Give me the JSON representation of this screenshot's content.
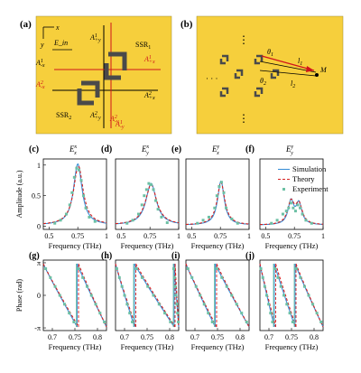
{
  "panels_top": {
    "a": {
      "label": "(a)",
      "x_axis": "x",
      "y_axis": "y",
      "e_in": "E_in",
      "ssr1": "SSR",
      "ssr1_sub": "1",
      "ssr2": "SSR",
      "ssr2_sub": "2",
      "ports": [
        {
          "base": "A",
          "sup": "1",
          "sub": "+y",
          "color": "#000000"
        },
        {
          "base": "A",
          "sup": "1",
          "sub": "+x",
          "color": "#d0141c"
        },
        {
          "base": "A",
          "sup": "1",
          "sub": "-x",
          "color": "#000000"
        },
        {
          "base": "A",
          "sup": "1",
          "sub": "-y",
          "color": "#d0141c"
        },
        {
          "base": "A",
          "sup": "2",
          "sub": "+y",
          "color": "#000000"
        },
        {
          "base": "A",
          "sup": "2",
          "sub": "-x",
          "color": "#d0141c"
        },
        {
          "base": "A",
          "sup": "2",
          "sub": "+x",
          "color": "#000000"
        },
        {
          "base": "A",
          "sup": "2",
          "sub": "-y",
          "color": "#d0141c"
        }
      ]
    },
    "b": {
      "label": "(b)",
      "theta1": "θ",
      "theta1_sub": "1",
      "theta2": "θ",
      "theta2_sub": "2",
      "l1": "l",
      "l1_sub": "1",
      "l2": "l",
      "l2_sub": "2",
      "point": "M",
      "ellipsis": "⋮",
      "ellipsis_h": "· · ·"
    }
  },
  "amp_panels": [
    {
      "label": "(c)",
      "title_base": "E",
      "title_sup": "x",
      "title_sub": "x"
    },
    {
      "label": "(d)",
      "title_base": "E",
      "title_sup": "x",
      "title_sub": "y"
    },
    {
      "label": "(e)",
      "title_base": "E",
      "title_sup": "y",
      "title_sub": "x"
    },
    {
      "label": "(f)",
      "title_base": "E",
      "title_sup": "y",
      "title_sub": "y"
    }
  ],
  "phase_panels": [
    {
      "label": "(g)"
    },
    {
      "label": "(h)"
    },
    {
      "label": "(i)"
    },
    {
      "label": "(j)"
    }
  ],
  "legend": {
    "items": [
      "Simulation",
      "Theory",
      "Experiment"
    ]
  },
  "colors": {
    "gold": "#f6cf3c",
    "simulation": "#3b8fd6",
    "theory": "#d62020",
    "experiment": "#6cc0a4",
    "red_arrow": "#d0141c"
  },
  "chart_data": [
    {
      "type": "line",
      "panel": "(c)",
      "title": "E^x_x",
      "xlabel": "Frequency (THz)",
      "ylabel": "Amplitude (a.u.)",
      "xlim": [
        0.45,
        1.0
      ],
      "ylim": [
        0,
        1
      ],
      "xticks": [
        "0.5",
        "0.75",
        "1"
      ],
      "yticks": [
        "0",
        "0.5",
        "1"
      ],
      "series": [
        {
          "name": "Simulation",
          "peak_x": 0.75,
          "peak_y": 1.0,
          "width": 0.045,
          "base": 0.02
        },
        {
          "name": "Theory",
          "peak_x": 0.755,
          "peak_y": 0.97,
          "width": 0.05,
          "base": 0.02
        },
        {
          "name": "Experiment",
          "x": [
            0.55,
            0.6,
            0.65,
            0.68,
            0.7,
            0.72,
            0.74,
            0.76,
            0.78,
            0.8,
            0.82,
            0.85,
            0.9
          ],
          "y": [
            0.05,
            0.1,
            0.2,
            0.35,
            0.55,
            0.8,
            0.95,
            0.92,
            0.75,
            0.5,
            0.3,
            0.15,
            0.08
          ]
        }
      ]
    },
    {
      "type": "line",
      "panel": "(d)",
      "title": "E^x_y",
      "xlabel": "Frequency (THz)",
      "xlim": [
        0.45,
        1.0
      ],
      "ylim": [
        0,
        1
      ],
      "xticks": [
        "0.5",
        "0.75",
        "1"
      ],
      "series": [
        {
          "name": "Simulation",
          "peak_x": 0.76,
          "peak_y": 0.68,
          "width": 0.055,
          "base": 0.02
        },
        {
          "name": "Theory",
          "peak_x": 0.76,
          "peak_y": 0.66,
          "width": 0.06,
          "base": 0.02
        },
        {
          "name": "Experiment",
          "x": [
            0.55,
            0.6,
            0.65,
            0.68,
            0.7,
            0.72,
            0.74,
            0.76,
            0.78,
            0.8,
            0.82,
            0.85,
            0.9
          ],
          "y": [
            0.05,
            0.1,
            0.2,
            0.35,
            0.5,
            0.6,
            0.7,
            0.68,
            0.6,
            0.42,
            0.28,
            0.15,
            0.06
          ]
        }
      ]
    },
    {
      "type": "line",
      "panel": "(e)",
      "title": "E^y_x",
      "xlabel": "Frequency (THz)",
      "xlim": [
        0.45,
        1.0
      ],
      "ylim": [
        0,
        1
      ],
      "xticks": [
        "0.5",
        "0.75",
        "1"
      ],
      "series": [
        {
          "name": "Simulation",
          "peak_x": 0.755,
          "peak_y": 0.72,
          "width": 0.035,
          "base": 0.02
        },
        {
          "name": "Theory",
          "peak_x": 0.755,
          "peak_y": 0.7,
          "width": 0.04,
          "base": 0.02
        },
        {
          "name": "Experiment",
          "x": [
            0.55,
            0.6,
            0.65,
            0.7,
            0.72,
            0.74,
            0.76,
            0.78,
            0.8,
            0.85,
            0.9
          ],
          "y": [
            0.05,
            0.1,
            0.15,
            0.3,
            0.5,
            0.65,
            0.72,
            0.55,
            0.3,
            0.12,
            0.05
          ]
        }
      ]
    },
    {
      "type": "line",
      "panel": "(f)",
      "title": "E^y_y",
      "xlabel": "Frequency (THz)",
      "xlim": [
        0.45,
        1.0
      ],
      "ylim": [
        0,
        1
      ],
      "xticks": [
        "0.5",
        "0.75",
        "1"
      ],
      "series": [
        {
          "name": "Simulation",
          "double_peak": [
            [
              0.72,
              0.38
            ],
            [
              0.79,
              0.34
            ]
          ],
          "width": 0.03,
          "base": 0.02
        },
        {
          "name": "Theory",
          "double_peak": [
            [
              0.72,
              0.36
            ],
            [
              0.79,
              0.32
            ]
          ],
          "width": 0.035,
          "base": 0.02
        },
        {
          "name": "Experiment",
          "x": [
            0.55,
            0.6,
            0.65,
            0.68,
            0.7,
            0.72,
            0.74,
            0.76,
            0.78,
            0.8,
            0.82,
            0.85,
            0.9
          ],
          "y": [
            0.05,
            0.1,
            0.2,
            0.25,
            0.3,
            0.38,
            0.3,
            0.25,
            0.35,
            0.3,
            0.2,
            0.1,
            0.05
          ]
        }
      ]
    },
    {
      "type": "line",
      "panel": "(g)",
      "xlabel": "Frequency (THz)",
      "ylabel": "Phase (rad)",
      "xlim": [
        0.68,
        0.82
      ],
      "ylim": [
        -3.1416,
        3.1416
      ],
      "xticks": [
        "0.7",
        "0.75",
        "0.8"
      ],
      "yticks": [
        "π",
        "0",
        "-π"
      ],
      "series": [
        {
          "name": "Simulation",
          "jumps": [
            0.755
          ]
        },
        {
          "name": "Theory",
          "jumps": [
            0.758
          ]
        },
        {
          "name": "Experiment",
          "jumps": [
            0.753
          ]
        }
      ]
    },
    {
      "type": "line",
      "panel": "(h)",
      "xlabel": "Frequency (THz)",
      "xlim": [
        0.68,
        0.82
      ],
      "ylim": [
        -3.1416,
        3.1416
      ],
      "xticks": [
        "0.7",
        "0.75",
        "0.8"
      ],
      "series": [
        {
          "name": "Simulation",
          "jumps": [
            0.722,
            0.81
          ]
        },
        {
          "name": "Theory",
          "jumps": [
            0.725,
            0.812
          ]
        },
        {
          "name": "Experiment",
          "jumps": [
            0.72,
            0.808
          ]
        }
      ]
    },
    {
      "type": "line",
      "panel": "(i)",
      "xlabel": "Frequency (THz)",
      "xlim": [
        0.68,
        0.82
      ],
      "ylim": [
        -3.1416,
        3.1416
      ],
      "xticks": [
        "0.7",
        "0.75",
        "0.8"
      ],
      "series": [
        {
          "name": "Simulation",
          "jumps": [
            0.745
          ]
        },
        {
          "name": "Theory",
          "jumps": [
            0.748
          ]
        },
        {
          "name": "Experiment",
          "jumps": [
            0.743
          ]
        }
      ]
    },
    {
      "type": "line",
      "panel": "(j)",
      "xlabel": "Frequency (THz)",
      "xlim": [
        0.68,
        0.82
      ],
      "ylim": [
        -3.1416,
        3.1416
      ],
      "xticks": [
        "0.7",
        "0.75",
        "0.8"
      ],
      "series": [
        {
          "name": "Simulation",
          "jumps": [
            0.712,
            0.758
          ]
        },
        {
          "name": "Theory",
          "jumps": [
            0.715,
            0.76
          ]
        },
        {
          "name": "Experiment",
          "jumps": [
            0.71,
            0.756
          ]
        }
      ]
    }
  ]
}
